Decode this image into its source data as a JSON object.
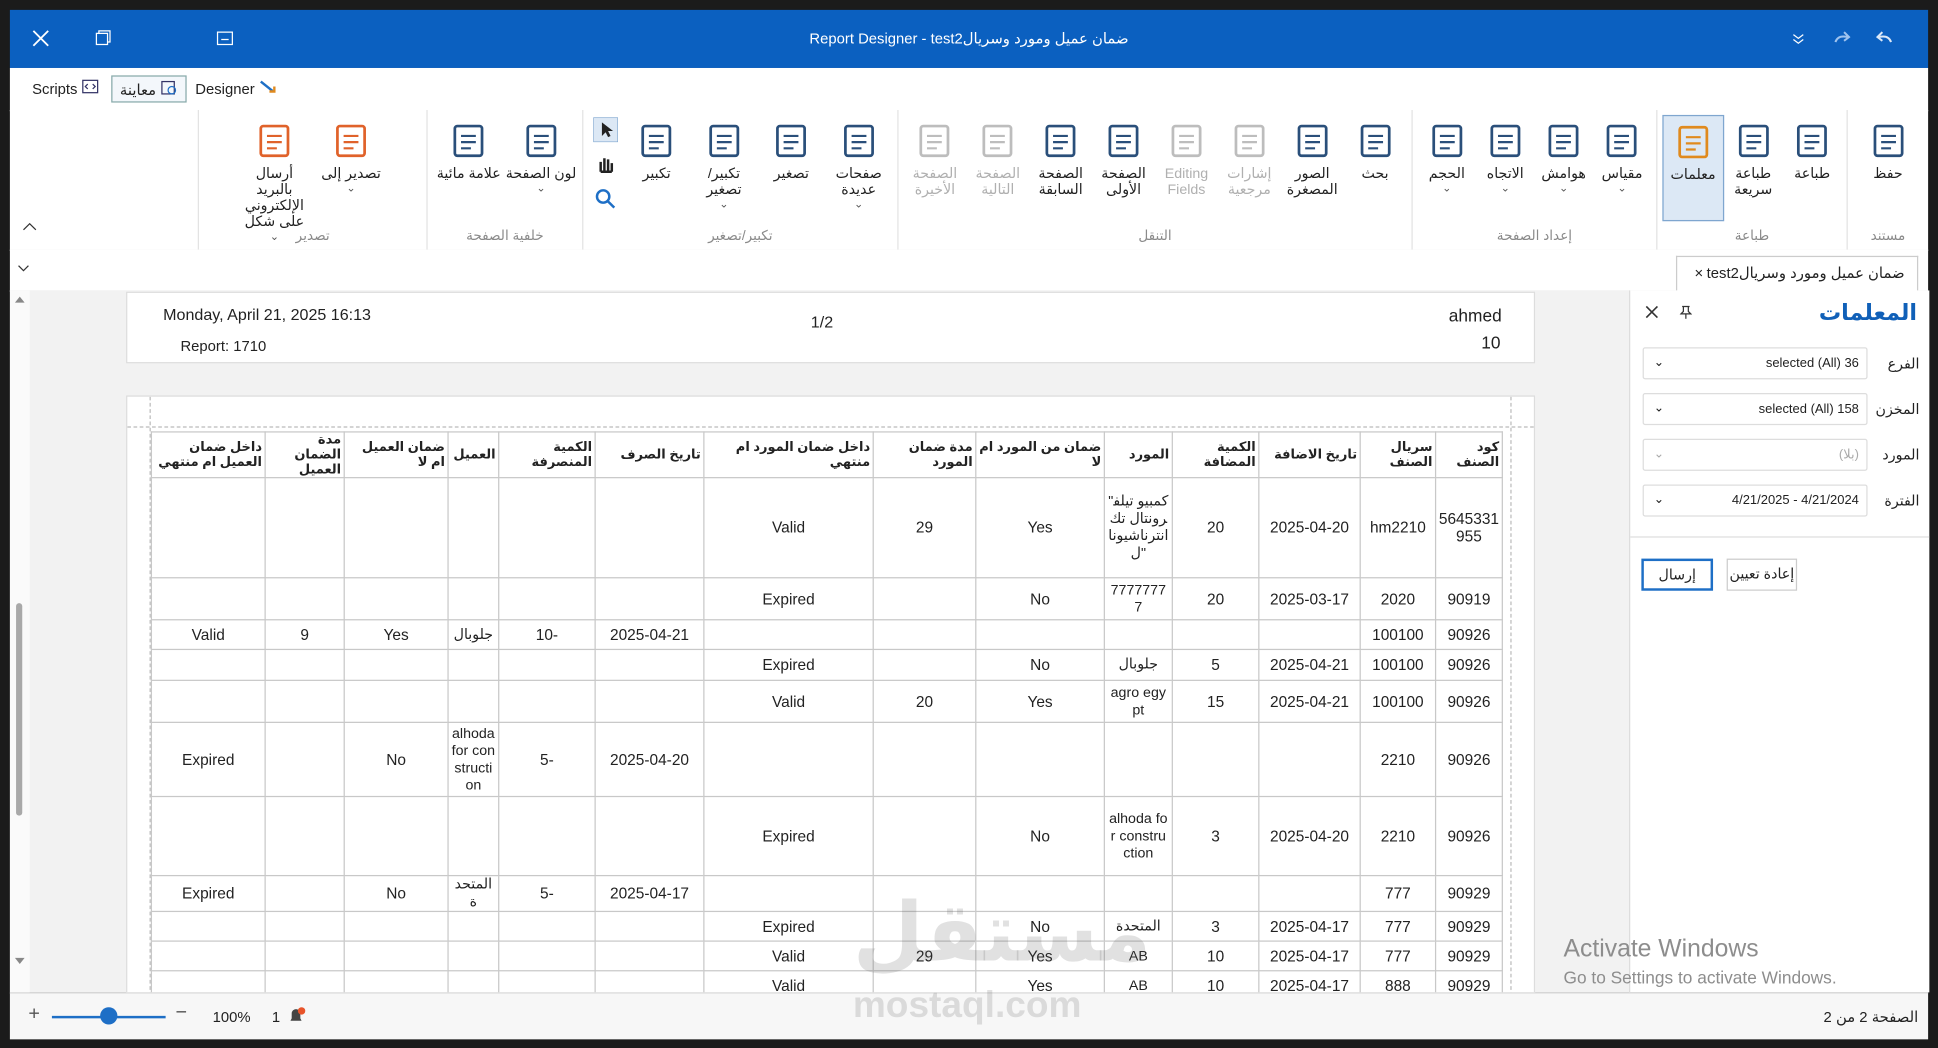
{
  "window": {
    "title": "Report Designer - test2ضمان عميل ومورد وسريال"
  },
  "tabs": [
    "Scripts",
    "معاينة",
    "Designer"
  ],
  "ribbon": {
    "groups": [
      {
        "label": "مستند",
        "width": 66,
        "buttons": [
          {
            "label": "حفظ"
          }
        ]
      },
      {
        "label": "طباعة",
        "width": 154,
        "buttons": [
          {
            "label": "طباعة"
          },
          {
            "label": "طباعة سريعة"
          },
          {
            "label": "معلمات",
            "selected": true
          }
        ]
      },
      {
        "label": "إعداد الصفحة",
        "width": 198,
        "buttons": [
          {
            "label": "مقياس",
            "dropdown": true
          },
          {
            "label": "هوامش",
            "dropdown": true
          },
          {
            "label": "الاتجاه",
            "dropdown": true
          },
          {
            "label": "الحجم",
            "dropdown": true
          }
        ]
      },
      {
        "label": "التنقل",
        "width": 416,
        "buttons": [
          {
            "label": "بحث"
          },
          {
            "label": "الصور المصغرة"
          },
          {
            "label": "إشارات مرجعية",
            "disabled": true
          },
          {
            "label": "Editing Fields",
            "disabled": true
          },
          {
            "label": "الصفحة الأولى"
          },
          {
            "label": "الصفحة السابقة"
          },
          {
            "label": "الصفحة التالية",
            "disabled": true
          },
          {
            "label": "الصفحة الأخيرة",
            "disabled": true
          }
        ]
      },
      {
        "label": "تكبير/تصغير",
        "width": 255,
        "buttons": [
          {
            "label": "صفحات عديدة",
            "dropdown": true
          },
          {
            "label": "تصغير"
          },
          {
            "label": "تكبير/تصغير",
            "dropdown": true
          },
          {
            "label": "تكبير"
          }
        ]
      },
      {
        "label": "خلفية الصفحة",
        "width": 126,
        "buttons": [
          {
            "label": "لون الصفحة",
            "dropdown": true
          },
          {
            "label": "علامة مائية"
          }
        ]
      },
      {
        "label": "تصدير",
        "width": 185,
        "buttons": [
          {
            "label": "تصدير إلى",
            "dropdown": true
          },
          {
            "label": "أرسال بالبريد الإلكتروني على شكل",
            "dropdown": true
          }
        ]
      }
    ]
  },
  "document_tab": "test2ضمان عميل ومورد وسريال",
  "report_header": {
    "date": "Monday, April 21, 2025 16:13",
    "report": "Report: 1710",
    "page": "1/2",
    "user": "ahmed",
    "number": "10"
  },
  "table": {
    "columns": [
      "كود الصنف",
      "سريال الصنف",
      "تاريخ الاضافة",
      "الكمية المضافة",
      "المورد",
      "ضمان من المورد ام لا",
      "مدة ضمان المورد",
      "داخل ضمان المورد ام منتهي",
      "تاريخ الصرف",
      "الكمية المنصرفة",
      "العميل",
      "ضمان العميل ام لا",
      "مدة الضمان العميل",
      "داخل ضمان العميل ام منتهي"
    ],
    "rows": [
      [
        "5645331955",
        "hm2210",
        "2025-04-20",
        "20",
        "\"كمبيو تيلفرونتال تك انترناشيونال\"",
        "Yes",
        "29",
        "Valid",
        null,
        null,
        null,
        null,
        null,
        null
      ],
      [
        "90919",
        "2020",
        "2025-03-17",
        "20",
        "77777777",
        "No",
        null,
        "Expired",
        null,
        null,
        null,
        null,
        null,
        null
      ],
      [
        "90926",
        "100100",
        null,
        null,
        null,
        null,
        null,
        null,
        "2025-04-21",
        "10-",
        "جلوبال",
        "Yes",
        "9",
        "Valid"
      ],
      [
        "90926",
        "100100",
        "2025-04-21",
        "5",
        "جلوبال",
        "No",
        null,
        "Expired",
        null,
        null,
        null,
        null,
        null,
        null
      ],
      [
        "90926",
        "100100",
        "2025-04-21",
        "15",
        "agro egypt",
        "Yes",
        "20",
        "Valid",
        null,
        null,
        null,
        null,
        null,
        null
      ],
      [
        "90926",
        "2210",
        null,
        null,
        null,
        null,
        null,
        null,
        "2025-04-20",
        "5-",
        "alhoda for construction",
        "No",
        null,
        "Expired"
      ],
      [
        "90926",
        "2210",
        "2025-04-20",
        "3",
        "alhoda for construction",
        "No",
        null,
        "Expired",
        null,
        null,
        null,
        null,
        null,
        null
      ],
      [
        "90929",
        "777",
        null,
        null,
        null,
        null,
        null,
        null,
        "2025-04-17",
        "5-",
        "المتحدة",
        "No",
        null,
        "Expired"
      ],
      [
        "90929",
        "777",
        "2025-04-17",
        "3",
        "المتحدة",
        "No",
        null,
        "Expired",
        null,
        null,
        null,
        null,
        null,
        null
      ],
      [
        "90929",
        "777",
        "2025-04-17",
        "10",
        "AB",
        "Yes",
        "29",
        "Valid",
        null,
        null,
        null,
        null,
        null,
        null
      ],
      [
        "90929",
        "888",
        "2025-04-17",
        "10",
        "AB",
        "Yes",
        null,
        "Valid",
        null,
        null,
        null,
        null,
        null,
        null
      ]
    ]
  },
  "parameters": {
    "title": "المعلمات",
    "fields": [
      {
        "label": "الفرع",
        "value": "selected (All) 36"
      },
      {
        "label": "المخزن",
        "value": "selected (All) 158"
      },
      {
        "label": "المورد",
        "value": "(بلا)",
        "placeholder": true
      },
      {
        "label": "الفترة",
        "value": "4/21/2025 - 4/21/2024"
      }
    ],
    "buttons": [
      "إعادة تعيين",
      "إرسال"
    ]
  },
  "status_bar": {
    "zoom": "100%",
    "notifications": "1",
    "page": "الصفحة 2 من 2"
  },
  "watermarks": {
    "activate_title": "Activate Windows",
    "activate_text": "Go to Settings to activate Windows.",
    "logo": "مستقل",
    "logo_url": "mostaql.com"
  }
}
